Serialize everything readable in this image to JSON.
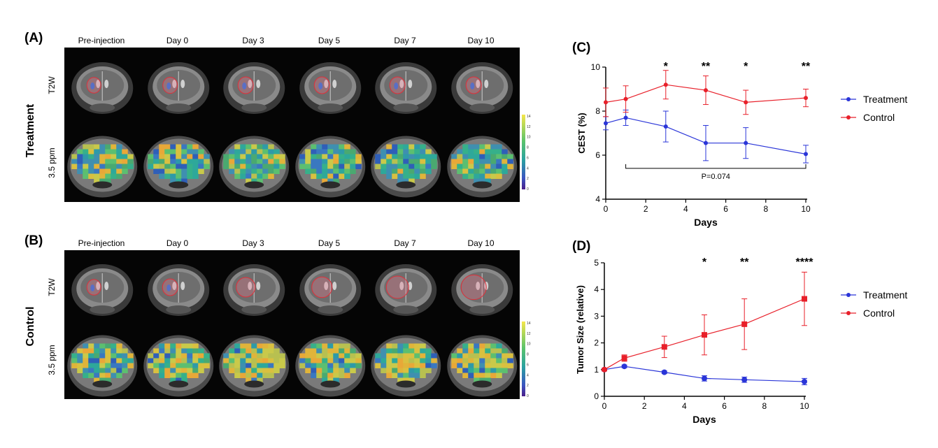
{
  "figure": {
    "panels": {
      "a": {
        "label": "(A)",
        "group": "Treatment",
        "rows": [
          "T2W",
          "3.5 ppm"
        ],
        "days": [
          "Pre-injection",
          "Day 0",
          "Day 3",
          "Day 5",
          "Day 7",
          "Day 10"
        ],
        "tumor_relative_size": [
          0.4,
          0.45,
          0.5,
          0.5,
          0.5,
          0.5
        ],
        "cest_level": [
          0.45,
          0.4,
          0.4,
          0.35,
          0.4,
          0.35
        ]
      },
      "b": {
        "label": "(B)",
        "group": "Control",
        "rows": [
          "T2W",
          "3.5 ppm"
        ],
        "days": [
          "Pre-injection",
          "Day 0",
          "Day 3",
          "Day 5",
          "Day 7",
          "Day 10"
        ],
        "tumor_relative_size": [
          0.4,
          0.5,
          0.75,
          0.85,
          1.0,
          1.2
        ],
        "cest_level": [
          0.45,
          0.6,
          0.8,
          0.7,
          0.65,
          0.7
        ]
      },
      "colorbar_ticks": [
        "14",
        "12",
        "10",
        "8",
        "6",
        "4",
        "2",
        "0"
      ]
    },
    "colors": {
      "treatment": "#2a35d8",
      "control": "#e8202a",
      "tumor_outline": "#e0303a"
    }
  },
  "chart_data": [
    {
      "panel_label": "(C)",
      "type": "line",
      "xlabel": "Days",
      "ylabel": "CEST (%)",
      "xlim": [
        0,
        10
      ],
      "ylim": [
        4,
        10
      ],
      "xticks": [
        "0",
        "2",
        "4",
        "6",
        "8",
        "10"
      ],
      "yticks": [
        "4",
        "6",
        "8",
        "10"
      ],
      "x": [
        0,
        1,
        3,
        5,
        7,
        10
      ],
      "series": [
        {
          "name": "Treatment",
          "values": [
            7.45,
            7.7,
            7.3,
            6.55,
            6.55,
            6.05
          ],
          "err": [
            0.3,
            0.35,
            0.7,
            0.8,
            0.7,
            0.4
          ]
        },
        {
          "name": "Control",
          "values": [
            8.4,
            8.55,
            9.2,
            8.95,
            8.4,
            8.6
          ],
          "err": [
            0.65,
            0.6,
            0.65,
            0.65,
            0.55,
            0.4
          ]
        }
      ],
      "significance": [
        {
          "x": 3,
          "text": "*"
        },
        {
          "x": 5,
          "text": "**"
        },
        {
          "x": 7,
          "text": "*"
        },
        {
          "x": 10,
          "text": "**"
        }
      ],
      "bracket": {
        "x_start": 1,
        "x_end": 10,
        "y": 5.4,
        "text": "P=0.074"
      },
      "legend": [
        "Treatment",
        "Control"
      ]
    },
    {
      "panel_label": "(D)",
      "type": "line",
      "xlabel": "Days",
      "ylabel": "Tumor Size (relative)",
      "xlim": [
        0,
        10
      ],
      "ylim": [
        0,
        5
      ],
      "xticks": [
        "0",
        "2",
        "4",
        "6",
        "8",
        "10"
      ],
      "yticks": [
        "0",
        "1",
        "2",
        "3",
        "4",
        "5"
      ],
      "x": [
        0,
        1,
        3,
        5,
        7,
        10
      ],
      "series": [
        {
          "name": "Treatment",
          "values": [
            1.0,
            1.12,
            0.9,
            0.67,
            0.62,
            0.55
          ],
          "err": [
            0.05,
            0.05,
            0.05,
            0.1,
            0.1,
            0.12
          ]
        },
        {
          "name": "Control",
          "values": [
            1.0,
            1.43,
            1.85,
            2.3,
            2.7,
            3.65
          ],
          "err": [
            0.05,
            0.12,
            0.4,
            0.75,
            0.95,
            1.0
          ]
        }
      ],
      "significance": [
        {
          "x": 5,
          "text": "*"
        },
        {
          "x": 7,
          "text": "**"
        },
        {
          "x": 10,
          "text": "****"
        }
      ],
      "legend": [
        "Treatment",
        "Control"
      ]
    }
  ]
}
